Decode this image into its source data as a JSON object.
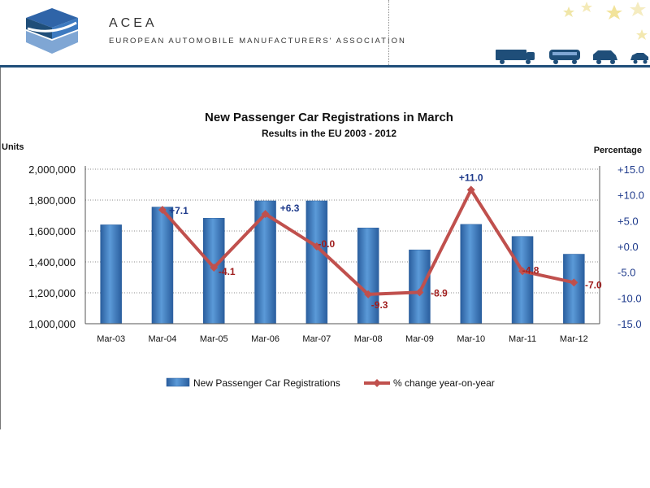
{
  "header": {
    "org_name": "ACEA",
    "org_subtitle": "EUROPEAN AUTOMOBILE MANUFACTURERS' ASSOCIATION",
    "accent_color": "#1f4e79"
  },
  "chart_data": {
    "type": "bar",
    "title": "New Passenger Car Registrations in March",
    "subtitle": "Results in the EU 2003 - 2012",
    "y_left_label": "Units",
    "y_right_label": "Percentage",
    "categories": [
      "Mar-03",
      "Mar-04",
      "Mar-05",
      "Mar-06",
      "Mar-07",
      "Mar-08",
      "Mar-09",
      "Mar-10",
      "Mar-11",
      "Mar-12"
    ],
    "left_axis": {
      "min": 1000000,
      "max": 2000000,
      "ticks": [
        {
          "v": 1000000,
          "label": "1,000,000"
        },
        {
          "v": 1200000,
          "label": "1,200,000"
        },
        {
          "v": 1400000,
          "label": "1,400,000"
        },
        {
          "v": 1600000,
          "label": "1,600,000"
        },
        {
          "v": 1800000,
          "label": "1,800,000"
        },
        {
          "v": 2000000,
          "label": "2,000,000"
        }
      ]
    },
    "right_axis": {
      "min": -15,
      "max": 15,
      "ticks": [
        {
          "v": 15,
          "label": "+15.0"
        },
        {
          "v": 10,
          "label": "+10.0"
        },
        {
          "v": 5,
          "label": "+5.0"
        },
        {
          "v": 0,
          "label": "+0.0"
        },
        {
          "v": -5,
          "label": "-5.0"
        },
        {
          "v": -10,
          "label": "-10.0"
        },
        {
          "v": -15,
          "label": "-15.0"
        }
      ]
    },
    "grid": true,
    "legend_position": "bottom",
    "series": [
      {
        "name": "New Passenger Car Registrations",
        "type": "bar",
        "axis": "left",
        "color": "#4a86c8",
        "values": [
          1640000,
          1755000,
          1683000,
          1795000,
          1795000,
          1620000,
          1478000,
          1643000,
          1565000,
          1450000
        ]
      },
      {
        "name": "% change year-on-year",
        "type": "line",
        "axis": "right",
        "color": "#c0504d",
        "values": [
          null,
          7.1,
          -4.1,
          6.3,
          -0.0,
          -9.3,
          -8.9,
          11.0,
          -4.8,
          -7.0
        ],
        "labels": [
          "",
          "+7.1",
          "-4.1",
          "+6.3",
          "-0.0",
          "-9.3",
          "-8.9",
          "+11.0",
          "-4.8",
          "-7.0"
        ],
        "label_colors": [
          "",
          "#1f3b8c",
          "#a01e1e",
          "#1f3b8c",
          "#a01e1e",
          "#a01e1e",
          "#a01e1e",
          "#1f3b8c",
          "#a01e1e",
          "#a01e1e"
        ]
      }
    ]
  }
}
